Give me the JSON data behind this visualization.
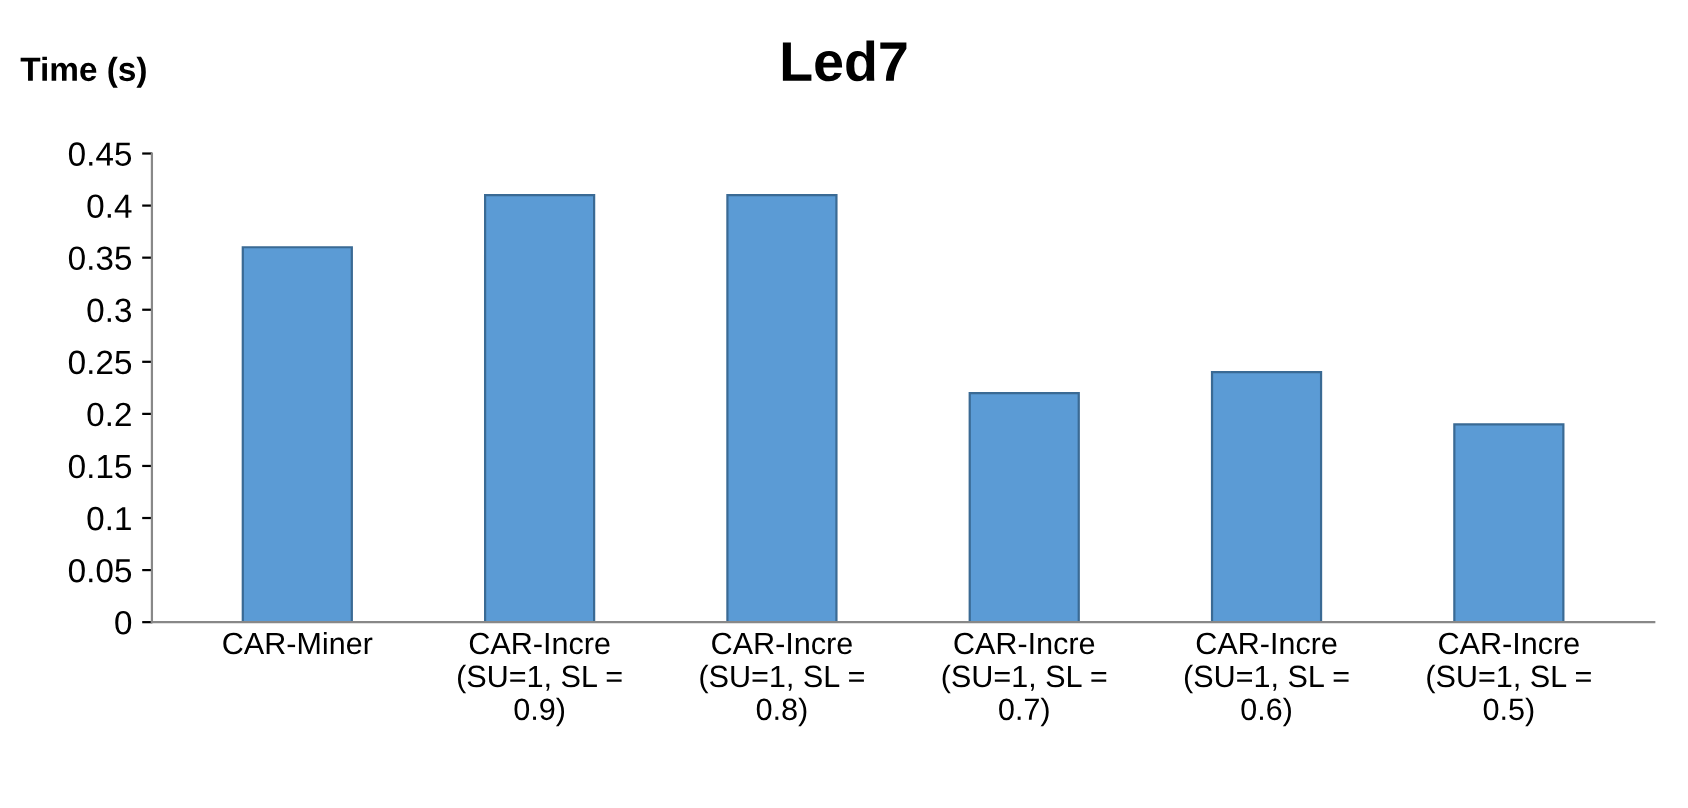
{
  "chart_data": {
    "type": "bar",
    "title": "Led7",
    "ylabel": "Time (s)",
    "categories": [
      "CAR-Miner",
      "CAR-Incre\n(SU=1, SL =\n0.9)",
      "CAR-Incre\n(SU=1, SL =\n0.8)",
      "CAR-Incre\n(SU=1, SL =\n0.7)",
      "CAR-Incre\n(SU=1, SL =\n0.6)",
      "CAR-Incre\n(SU=1, SL =\n0.5)"
    ],
    "values": [
      0.36,
      0.41,
      0.41,
      0.22,
      0.24,
      0.19
    ],
    "color": "#5b9bd5",
    "ylim": [
      0,
      0.45
    ],
    "yticks": [
      0,
      0.05,
      0.1,
      0.15,
      0.2,
      0.25,
      0.3,
      0.35,
      0.4,
      0.45
    ],
    "grid": false
  }
}
